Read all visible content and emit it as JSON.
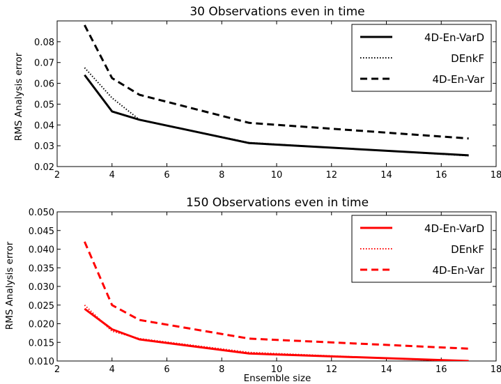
{
  "chart_data": [
    {
      "type": "line",
      "title": "30 Observations even in time",
      "xlabel": "",
      "ylabel": "RMS Analysis error",
      "xlim": [
        2,
        18
      ],
      "ylim": [
        0.02,
        0.09
      ],
      "xticks": [
        "2",
        "4",
        "6",
        "8",
        "10",
        "12",
        "14",
        "16",
        "18"
      ],
      "yticks": [
        "0.02",
        "0.03",
        "0.04",
        "0.05",
        "0.06",
        "0.07",
        "0.08"
      ],
      "legend_position": "top-right",
      "grid": false,
      "color": "#000000",
      "series": [
        {
          "name": "4D-En-VarD",
          "style": "solid",
          "x": [
            3,
            4,
            5,
            9,
            17
          ],
          "y": [
            0.064,
            0.0465,
            0.0425,
            0.0313,
            0.0254
          ]
        },
        {
          "name": "DEnkF",
          "style": "dotted",
          "x": [
            3,
            4,
            5,
            9,
            17
          ],
          "y": [
            0.0675,
            0.053,
            0.0425,
            0.0315,
            0.0252
          ]
        },
        {
          "name": "4D-En-Var",
          "style": "dashed",
          "x": [
            3,
            4,
            5,
            9,
            17
          ],
          "y": [
            0.088,
            0.0625,
            0.0545,
            0.041,
            0.0335
          ]
        }
      ]
    },
    {
      "type": "line",
      "title": "150 Observations even in time",
      "xlabel": "Ensemble size",
      "ylabel": "RMS Analysis error",
      "xlim": [
        2,
        18
      ],
      "ylim": [
        0.01,
        0.05
      ],
      "xticks": [
        "2",
        "4",
        "6",
        "8",
        "10",
        "12",
        "14",
        "16",
        "18"
      ],
      "yticks": [
        "0.010",
        "0.015",
        "0.020",
        "0.025",
        "0.030",
        "0.035",
        "0.040",
        "0.045",
        "0.050"
      ],
      "legend_position": "top-right",
      "grid": false,
      "color": "#ff0000",
      "series": [
        {
          "name": "4D-En-VarD",
          "style": "solid",
          "x": [
            3,
            4,
            5,
            9,
            17
          ],
          "y": [
            0.024,
            0.0185,
            0.0158,
            0.012,
            0.01
          ]
        },
        {
          "name": "DEnkF",
          "style": "dotted",
          "x": [
            3,
            4,
            5,
            9,
            17
          ],
          "y": [
            0.025,
            0.018,
            0.016,
            0.0123,
            0.0098
          ]
        },
        {
          "name": "4D-En-Var",
          "style": "dashed",
          "x": [
            3,
            4,
            5,
            9,
            17
          ],
          "y": [
            0.042,
            0.025,
            0.021,
            0.016,
            0.0133
          ]
        }
      ]
    }
  ]
}
